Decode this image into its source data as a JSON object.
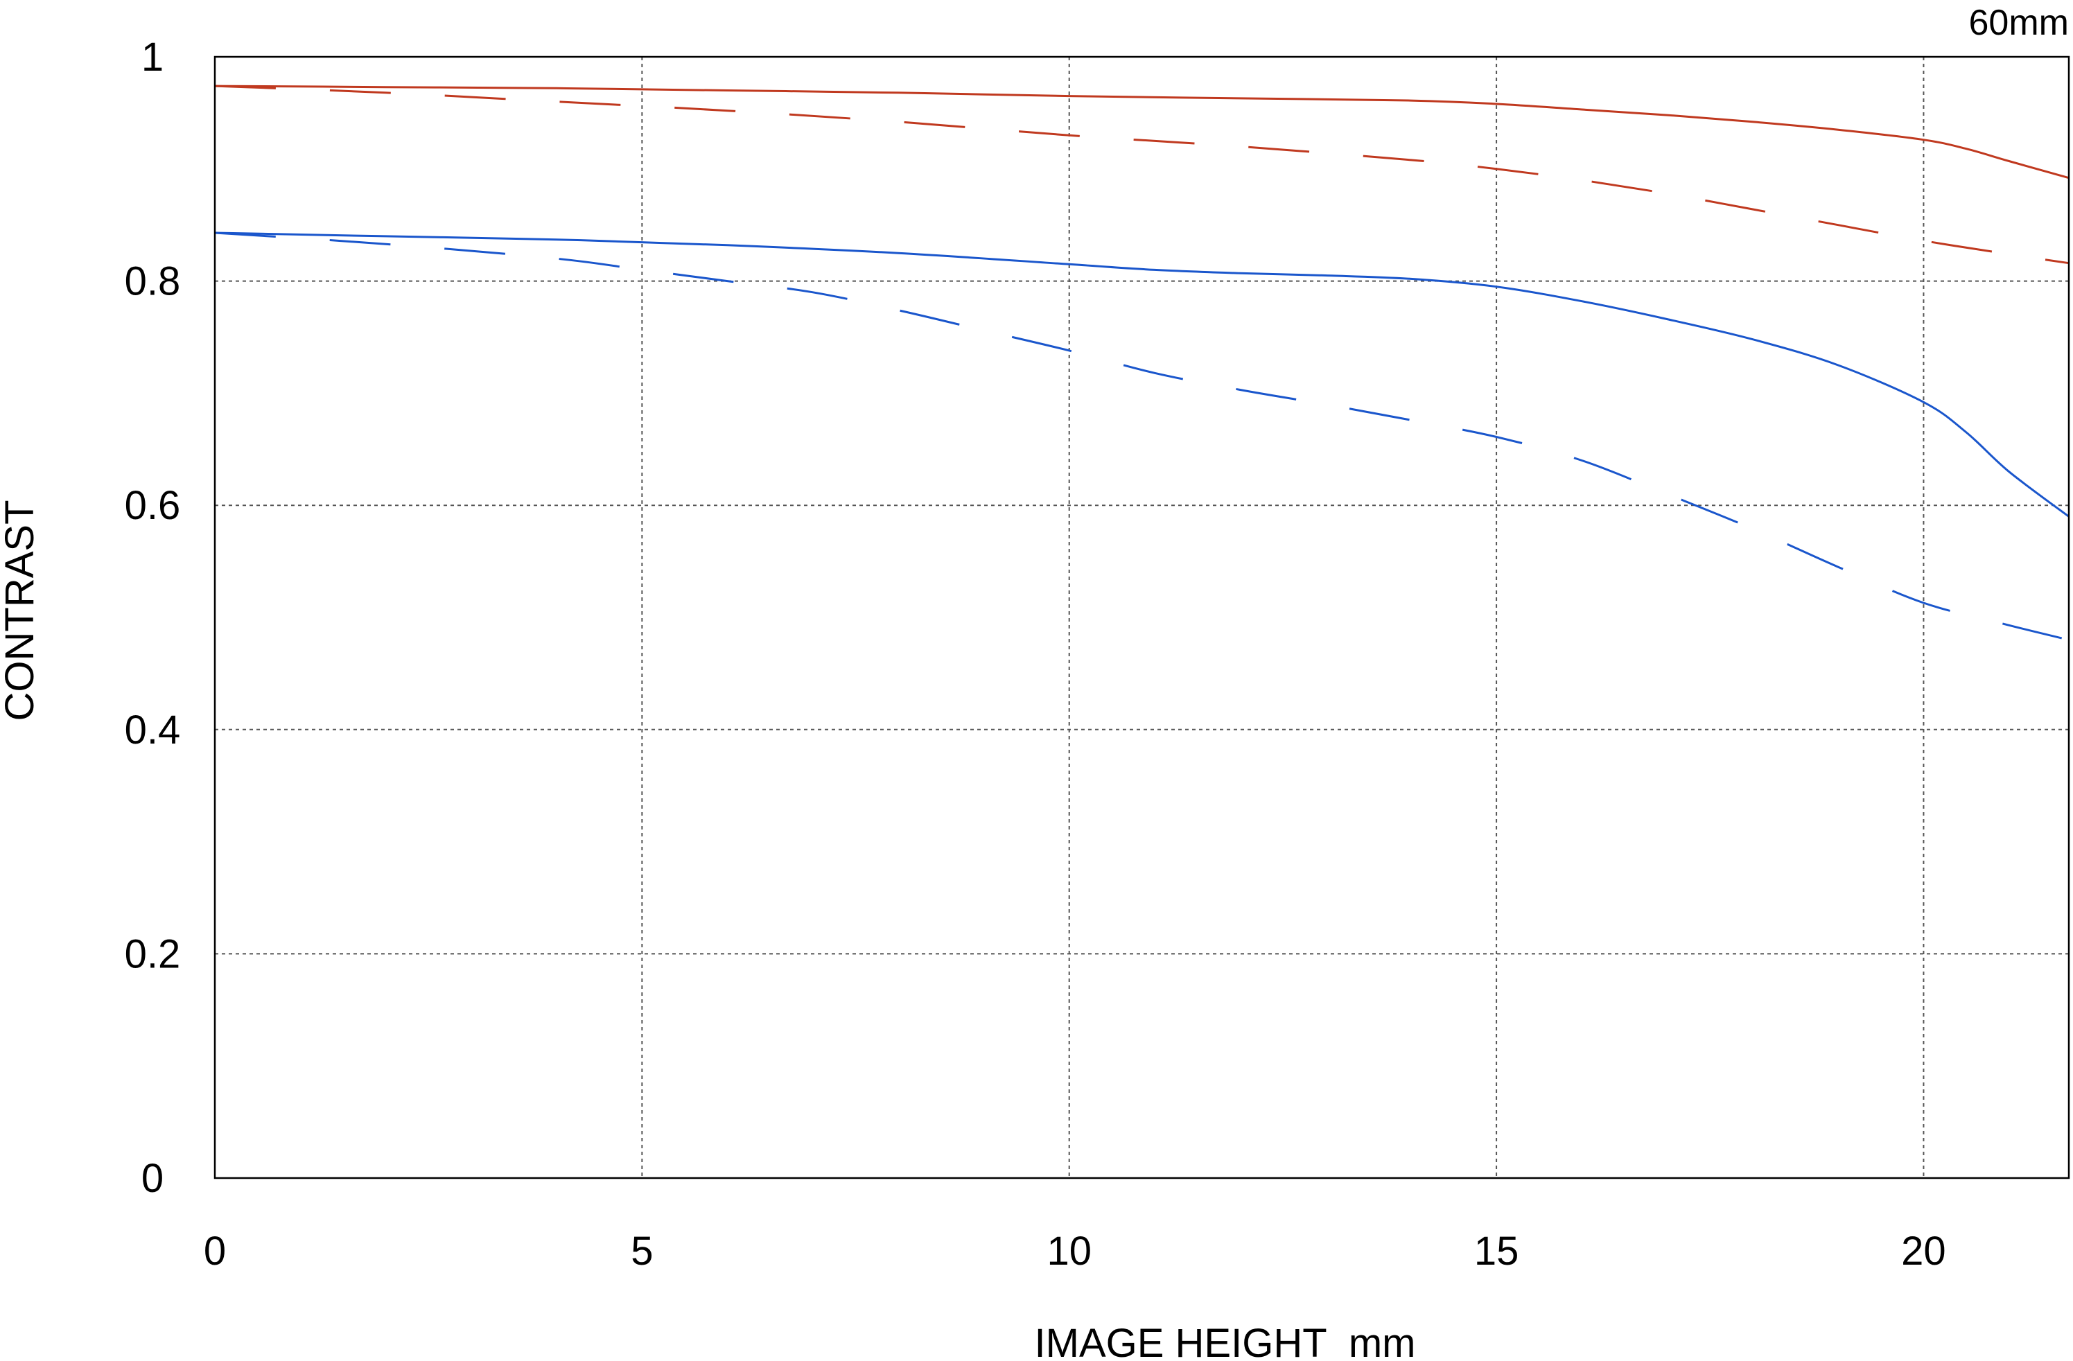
{
  "chart_data": {
    "type": "line",
    "title": "60mm",
    "xlabel": "IMAGE HEIGHT  mm",
    "ylabel": "CONTRAST",
    "xlim": [
      0,
      21.7
    ],
    "ylim": [
      0,
      1
    ],
    "x_ticks": [
      0,
      5,
      10,
      15,
      20
    ],
    "x_tick_labels": [
      "0",
      "5",
      "10",
      "15",
      "20"
    ],
    "y_ticks": [
      0,
      0.2,
      0.4,
      0.6,
      0.8,
      1
    ],
    "y_tick_labels": [
      "0",
      "0.2",
      "0.4",
      "0.6",
      "0.8",
      "1"
    ],
    "grid": true,
    "legend": "none",
    "series": [
      {
        "color": "#c0391f",
        "dash": "solid",
        "x": [
          0,
          2,
          4,
          6,
          8,
          10,
          12,
          14,
          15,
          16,
          17,
          18,
          19,
          20,
          20.5,
          21,
          21.7
        ],
        "y": [
          0.974,
          0.973,
          0.972,
          0.97,
          0.968,
          0.965,
          0.963,
          0.961,
          0.958,
          0.953,
          0.948,
          0.942,
          0.935,
          0.926,
          0.918,
          0.907,
          0.892
        ]
      },
      {
        "color": "#c0391f",
        "dash": "dashed",
        "x": [
          0,
          2,
          4,
          6,
          8,
          10,
          12,
          14,
          15,
          16,
          17,
          18,
          19,
          20,
          21,
          21.7
        ],
        "y": [
          0.974,
          0.968,
          0.96,
          0.952,
          0.942,
          0.93,
          0.92,
          0.908,
          0.9,
          0.89,
          0.878,
          0.864,
          0.85,
          0.836,
          0.824,
          0.816
        ]
      },
      {
        "color": "#1a56cc",
        "dash": "solid",
        "x": [
          0,
          2,
          4,
          6,
          8,
          10,
          11,
          12,
          13,
          14,
          15,
          16,
          17,
          18,
          19,
          20,
          20.5,
          21,
          21.7
        ],
        "y": [
          0.843,
          0.84,
          0.837,
          0.832,
          0.825,
          0.815,
          0.81,
          0.807,
          0.805,
          0.802,
          0.795,
          0.782,
          0.766,
          0.748,
          0.725,
          0.692,
          0.665,
          0.63,
          0.59
        ]
      },
      {
        "color": "#1a56cc",
        "dash": "dashed",
        "x": [
          0,
          2,
          4,
          5,
          6,
          7,
          8,
          9,
          10,
          11,
          12,
          13,
          14,
          15,
          16,
          17,
          18,
          19,
          20,
          21,
          21.7
        ],
        "y": [
          0.843,
          0.833,
          0.82,
          0.81,
          0.8,
          0.79,
          0.774,
          0.756,
          0.738,
          0.718,
          0.703,
          0.69,
          0.676,
          0.661,
          0.64,
          0.61,
          0.579,
          0.545,
          0.513,
          0.493,
          0.48
        ]
      }
    ]
  }
}
